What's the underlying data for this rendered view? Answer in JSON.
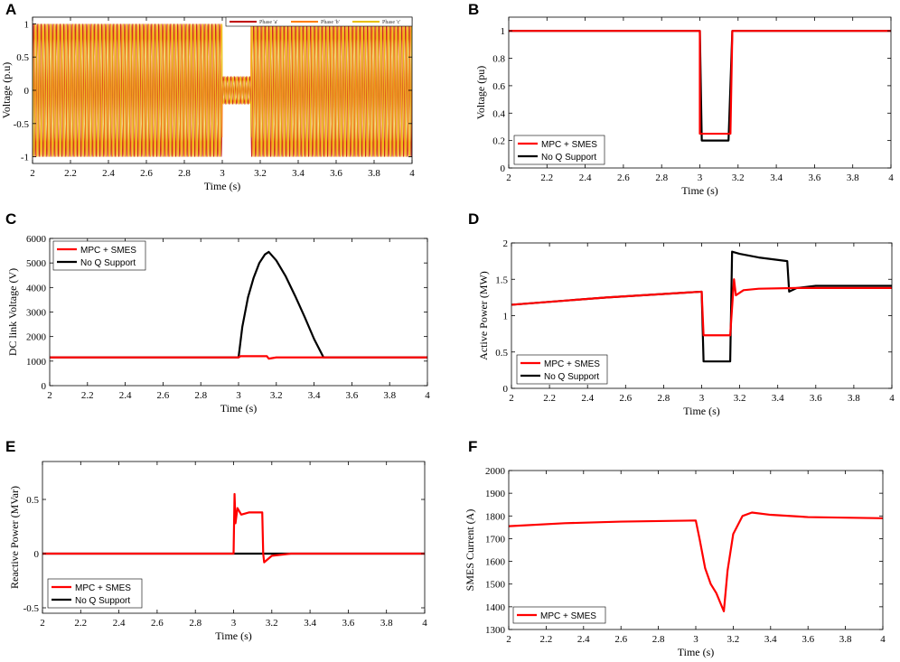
{
  "chart_data": [
    {
      "id": "A",
      "type": "line",
      "panel_label": "A",
      "xlabel": "Time (s)",
      "ylabel": "Voltage (p.u)",
      "xlim": [
        2,
        4
      ],
      "ylim": [
        -1.1,
        1.1
      ],
      "xticks": [
        2,
        2.2,
        2.4,
        2.6,
        2.8,
        3,
        3.2,
        3.4,
        3.6,
        3.8,
        4
      ],
      "xtick_labels": [
        "2",
        "2.2",
        "2.4",
        "2.6",
        "2.8",
        "3",
        "3.2",
        "3.4",
        "3.6",
        "3.8",
        "4"
      ],
      "yticks": [
        -1,
        -0.5,
        0,
        0.5,
        1
      ],
      "ytick_labels": [
        "-1",
        "-0.5",
        "0",
        "0.5",
        "1"
      ],
      "legend_position": "top-right",
      "legend_orientation": "horizontal",
      "sag": {
        "start": 3.0,
        "end": 3.15,
        "amplitude_pu": 0.2
      },
      "nominal_amplitude_pu": 1.0,
      "frequency_hz": 50,
      "series": [
        {
          "name": "Phase 'a'",
          "color": "#c00000"
        },
        {
          "name": "Phase 'b'",
          "color": "#ff7f00"
        },
        {
          "name": "Phase 'c'",
          "color": "#e8c000"
        }
      ]
    },
    {
      "id": "B",
      "type": "line",
      "panel_label": "B",
      "xlabel": "Time (s)",
      "ylabel": "Voltage (pu)",
      "xlim": [
        2,
        4
      ],
      "ylim": [
        0,
        1.1
      ],
      "xticks": [
        2,
        2.2,
        2.4,
        2.6,
        2.8,
        3,
        3.2,
        3.4,
        3.6,
        3.8,
        4
      ],
      "xtick_labels": [
        "2",
        "2.2",
        "2.4",
        "2.6",
        "2.8",
        "3",
        "3.2",
        "3.4",
        "3.6",
        "3.8",
        "4"
      ],
      "yticks": [
        0,
        0.2,
        0.4,
        0.6,
        0.8,
        1
      ],
      "ytick_labels": [
        "0",
        "0.2",
        "0.4",
        "0.6",
        "0.8",
        "1"
      ],
      "legend_position": "bottom-left",
      "series": [
        {
          "name": "MPC + SMES",
          "color": "#ff0000",
          "x": [
            2,
            3.0,
            3.0,
            3.01,
            3.15,
            3.16,
            3.17,
            4
          ],
          "y": [
            1,
            1,
            0.25,
            0.25,
            0.25,
            0.25,
            1,
            1
          ]
        },
        {
          "name": "No Q Support",
          "color": "#000000",
          "x": [
            2,
            3.0,
            3.01,
            3.15,
            3.17,
            4
          ],
          "y": [
            1,
            1,
            0.2,
            0.2,
            1,
            1
          ]
        }
      ]
    },
    {
      "id": "C",
      "type": "line",
      "panel_label": "C",
      "xlabel": "Time (s)",
      "ylabel": "DC link Voltage (V)",
      "xlim": [
        2,
        4
      ],
      "ylim": [
        0,
        6000
      ],
      "xticks": [
        2,
        2.2,
        2.4,
        2.6,
        2.8,
        3,
        3.2,
        3.4,
        3.6,
        3.8,
        4
      ],
      "xtick_labels": [
        "2",
        "2.2",
        "2.4",
        "2.6",
        "2.8",
        "3",
        "3.2",
        "3.4",
        "3.6",
        "3.8",
        "4"
      ],
      "yticks": [
        0,
        1000,
        2000,
        3000,
        4000,
        5000,
        6000
      ],
      "ytick_labels": [
        "0",
        "1000",
        "2000",
        "3000",
        "4000",
        "5000",
        "6000"
      ],
      "legend_position": "top-left",
      "series": [
        {
          "name": "MPC + SMES",
          "color": "#ff0000",
          "x": [
            2,
            3.0,
            3.01,
            3.15,
            3.16,
            3.2,
            3.3,
            3.45,
            4
          ],
          "y": [
            1150,
            1150,
            1200,
            1200,
            1100,
            1150,
            1150,
            1150,
            1150
          ]
        },
        {
          "name": "No Q Support",
          "color": "#000000",
          "x": [
            2,
            3.0,
            3.02,
            3.05,
            3.08,
            3.11,
            3.14,
            3.16,
            3.2,
            3.25,
            3.3,
            3.35,
            3.4,
            3.45,
            4
          ],
          "y": [
            1150,
            1150,
            2400,
            3600,
            4400,
            5000,
            5350,
            5450,
            5100,
            4450,
            3650,
            2800,
            1900,
            1150,
            1150
          ]
        }
      ]
    },
    {
      "id": "D",
      "type": "line",
      "panel_label": "D",
      "xlabel": "Time (s)",
      "ylabel": "Active Power (MW)",
      "xlim": [
        2,
        4
      ],
      "ylim": [
        0,
        2
      ],
      "xticks": [
        2,
        2.2,
        2.4,
        2.6,
        2.8,
        3,
        3.2,
        3.4,
        3.6,
        3.8,
        4
      ],
      "xtick_labels": [
        "2",
        "2.2",
        "2.4",
        "2.6",
        "2.8",
        "3",
        "3.2",
        "3.4",
        "3.6",
        "3.8",
        "4"
      ],
      "yticks": [
        0,
        0.5,
        1,
        1.5,
        2
      ],
      "ytick_labels": [
        "0",
        "0.5",
        "1",
        "1.5",
        "2"
      ],
      "legend_position": "bottom-left",
      "series": [
        {
          "name": "MPC + SMES",
          "color": "#ff0000",
          "x": [
            2,
            2.5,
            3.0,
            3.01,
            3.15,
            3.17,
            3.18,
            3.22,
            3.3,
            3.5,
            4
          ],
          "y": [
            1.15,
            1.25,
            1.33,
            0.73,
            0.73,
            1.5,
            1.28,
            1.35,
            1.37,
            1.38,
            1.38
          ]
        },
        {
          "name": "No Q Support",
          "color": "#000000",
          "x": [
            2,
            2.5,
            3.0,
            3.01,
            3.15,
            3.16,
            3.2,
            3.3,
            3.45,
            3.46,
            3.5,
            3.6,
            4
          ],
          "y": [
            1.15,
            1.25,
            1.33,
            0.37,
            0.37,
            1.88,
            1.85,
            1.8,
            1.75,
            1.33,
            1.38,
            1.41,
            1.41
          ]
        }
      ]
    },
    {
      "id": "E",
      "type": "line",
      "panel_label": "E",
      "xlabel": "Time (s)",
      "ylabel": "Reactive Power (MVar)",
      "xlim": [
        2,
        4
      ],
      "ylim": [
        -0.55,
        0.85
      ],
      "xticks": [
        2,
        2.2,
        2.4,
        2.6,
        2.8,
        3,
        3.2,
        3.4,
        3.6,
        3.8,
        4
      ],
      "xtick_labels": [
        "2",
        "2.2",
        "2.4",
        "2.6",
        "2.8",
        "3",
        "3.2",
        "3.4",
        "3.6",
        "3.8",
        "4"
      ],
      "yticks": [
        -0.5,
        0,
        0.5
      ],
      "ytick_labels": [
        "-0.5",
        "0",
        "0.5"
      ],
      "legend_position": "bottom-left",
      "series": [
        {
          "name": "MPC + SMES",
          "color": "#ff0000",
          "x": [
            2,
            3.0,
            3.005,
            3.01,
            3.02,
            3.04,
            3.08,
            3.15,
            3.155,
            3.16,
            3.2,
            3.3,
            4
          ],
          "y": [
            0,
            0,
            0.55,
            0.28,
            0.42,
            0.36,
            0.38,
            0.38,
            0,
            -0.08,
            -0.02,
            0,
            0
          ]
        },
        {
          "name": "No Q Support",
          "color": "#000000",
          "x": [
            2,
            4
          ],
          "y": [
            0,
            0
          ]
        }
      ]
    },
    {
      "id": "F",
      "type": "line",
      "panel_label": "F",
      "xlabel": "Time (s)",
      "ylabel": "SMES Current (A)",
      "xlim": [
        2,
        4
      ],
      "ylim": [
        1300,
        2000
      ],
      "xticks": [
        2,
        2.2,
        2.4,
        2.6,
        2.8,
        3,
        3.2,
        3.4,
        3.6,
        3.8,
        4
      ],
      "xtick_labels": [
        "2",
        "2.2",
        "2.4",
        "2.6",
        "2.8",
        "3",
        "3.2",
        "3.4",
        "3.6",
        "3.8",
        "4"
      ],
      "yticks": [
        1300,
        1400,
        1500,
        1600,
        1700,
        1800,
        1900,
        2000
      ],
      "ytick_labels": [
        "1300",
        "1400",
        "1500",
        "1600",
        "1700",
        "1800",
        "1900",
        "2000"
      ],
      "legend_position": "bottom-left",
      "series": [
        {
          "name": "MPC + SMES",
          "color": "#ff0000",
          "x": [
            2,
            2.3,
            2.6,
            3.0,
            3.02,
            3.05,
            3.08,
            3.11,
            3.14,
            3.15,
            3.17,
            3.2,
            3.25,
            3.3,
            3.4,
            3.6,
            4
          ],
          "y": [
            1755,
            1768,
            1775,
            1780,
            1700,
            1570,
            1500,
            1460,
            1400,
            1380,
            1560,
            1720,
            1800,
            1815,
            1805,
            1795,
            1790
          ]
        }
      ]
    }
  ]
}
